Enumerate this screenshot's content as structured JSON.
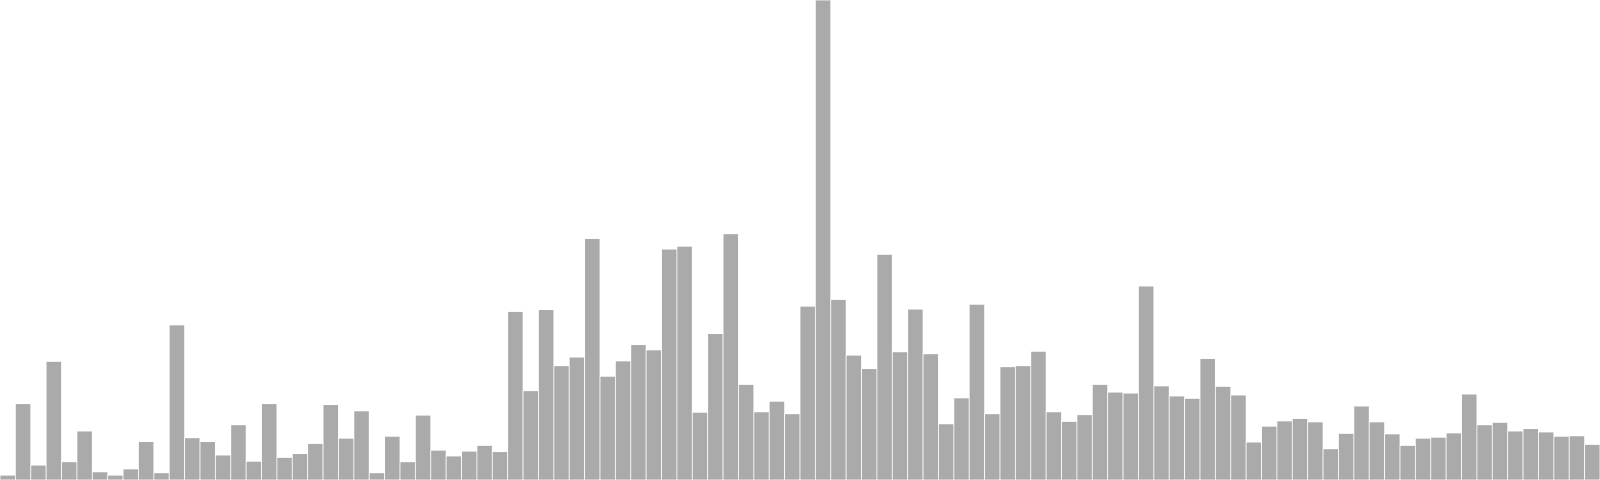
{
  "chart_data": {
    "type": "bar",
    "title": "",
    "xlabel": "",
    "ylabel": "",
    "ylim": [
      0,
      100
    ],
    "grid": false,
    "legend": "none",
    "bar_color": "#aaaaaa",
    "bar_edge_color": "#ffffff",
    "values": [
      1.0,
      15.9,
      3.1,
      24.7,
      3.8,
      10.2,
      1.7,
      1.0,
      2.3,
      8.0,
      1.5,
      32.3,
      8.8,
      8.0,
      5.2,
      11.5,
      3.9,
      15.9,
      4.7,
      5.5,
      7.6,
      15.7,
      8.7,
      14.4,
      1.5,
      9.1,
      3.8,
      13.5,
      6.2,
      5.0,
      6.0,
      7.2,
      5.9,
      35.1,
      18.6,
      35.5,
      23.8,
      25.6,
      50.3,
      21.6,
      24.8,
      28.2,
      27.1,
      48.1,
      48.7,
      14.1,
      30.5,
      51.3,
      19.9,
      14.2,
      16.4,
      13.8,
      36.2,
      100.0,
      37.6,
      26.0,
      23.2,
      47.0,
      26.7,
      35.6,
      26.3,
      11.7,
      17.1,
      36.6,
      13.8,
      23.6,
      23.8,
      26.8,
      14.2,
      12.2,
      13.6,
      19.9,
      18.3,
      18.1,
      40.4,
      19.6,
      17.5,
      17.0,
      25.3,
      19.5,
      17.7,
      7.9,
      11.2,
      12.3,
      12.8,
      12.1,
      6.5,
      9.7,
      15.4,
      12.1,
      9.6,
      7.2,
      8.7,
      8.9,
      9.8,
      17.9,
      11.5,
      12.0,
      10.2,
      10.7,
      10.0,
      9.1,
      9.2,
      7.4
    ]
  }
}
